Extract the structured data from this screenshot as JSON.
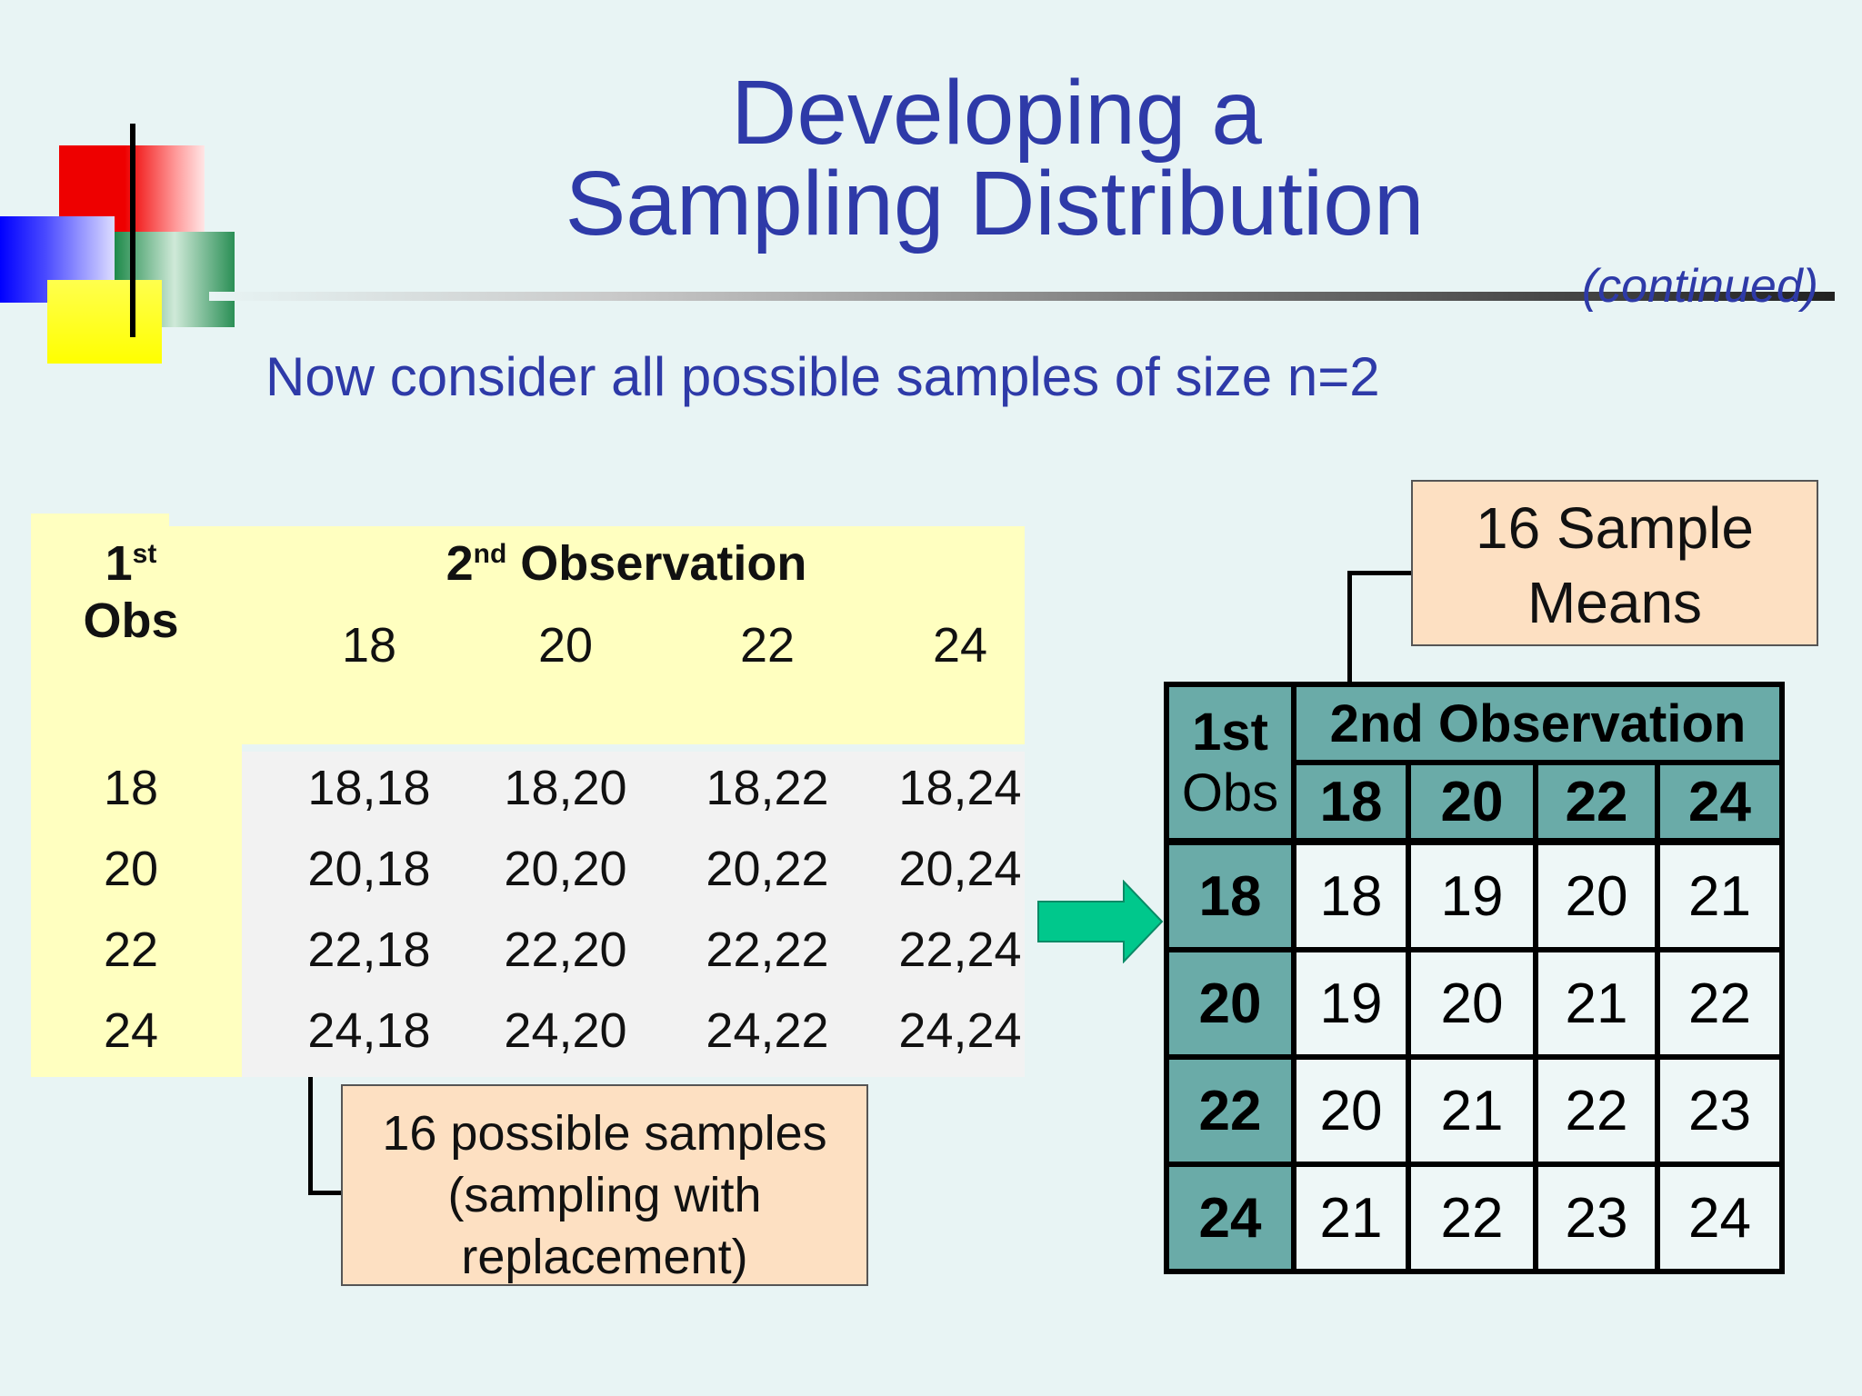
{
  "title": {
    "line1": "Developing a",
    "line2": "Sampling Distribution",
    "continued": "(continued)"
  },
  "subtitle": "Now consider all possible samples of size n=2",
  "left_table": {
    "row_header_main": "1",
    "row_header_sup": "st",
    "row_header_sub": "Obs",
    "col_header_main": "2",
    "col_header_sup": "nd",
    "col_header_rest": " Observation",
    "columns": [
      "18",
      "20",
      "22",
      "24"
    ],
    "rows": [
      {
        "label": "18",
        "cells": [
          "18,18",
          "18,20",
          "18,22",
          "18,24"
        ]
      },
      {
        "label": "20",
        "cells": [
          "20,18",
          "20,20",
          "20,22",
          "20,24"
        ]
      },
      {
        "label": "22",
        "cells": [
          "22,18",
          "22,20",
          "22,22",
          "22,24"
        ]
      },
      {
        "label": "24",
        "cells": [
          "24,18",
          "24,20",
          "24,22",
          "24,24"
        ]
      }
    ]
  },
  "callout_samples": {
    "line1": "16 possible samples",
    "line2": "(sampling with",
    "line3": "replacement)"
  },
  "callout_means": {
    "line1": "16 Sample",
    "line2": "Means"
  },
  "right_table": {
    "row_header_line1": "1st",
    "row_header_line2": "Obs",
    "col_header": "2nd Observation",
    "columns": [
      "18",
      "20",
      "22",
      "24"
    ],
    "rows": [
      {
        "label": "18",
        "cells": [
          "18",
          "19",
          "20",
          "21"
        ]
      },
      {
        "label": "20",
        "cells": [
          "19",
          "20",
          "21",
          "22"
        ]
      },
      {
        "label": "22",
        "cells": [
          "20",
          "21",
          "22",
          "23"
        ]
      },
      {
        "label": "24",
        "cells": [
          "21",
          "22",
          "23",
          "24"
        ]
      }
    ]
  },
  "colors": {
    "title": "#2e3aa8",
    "header_teal": "#6aaba8",
    "yellow": "#ffffc0",
    "callout": "#fde0c2",
    "arrow": "#00c88c"
  }
}
